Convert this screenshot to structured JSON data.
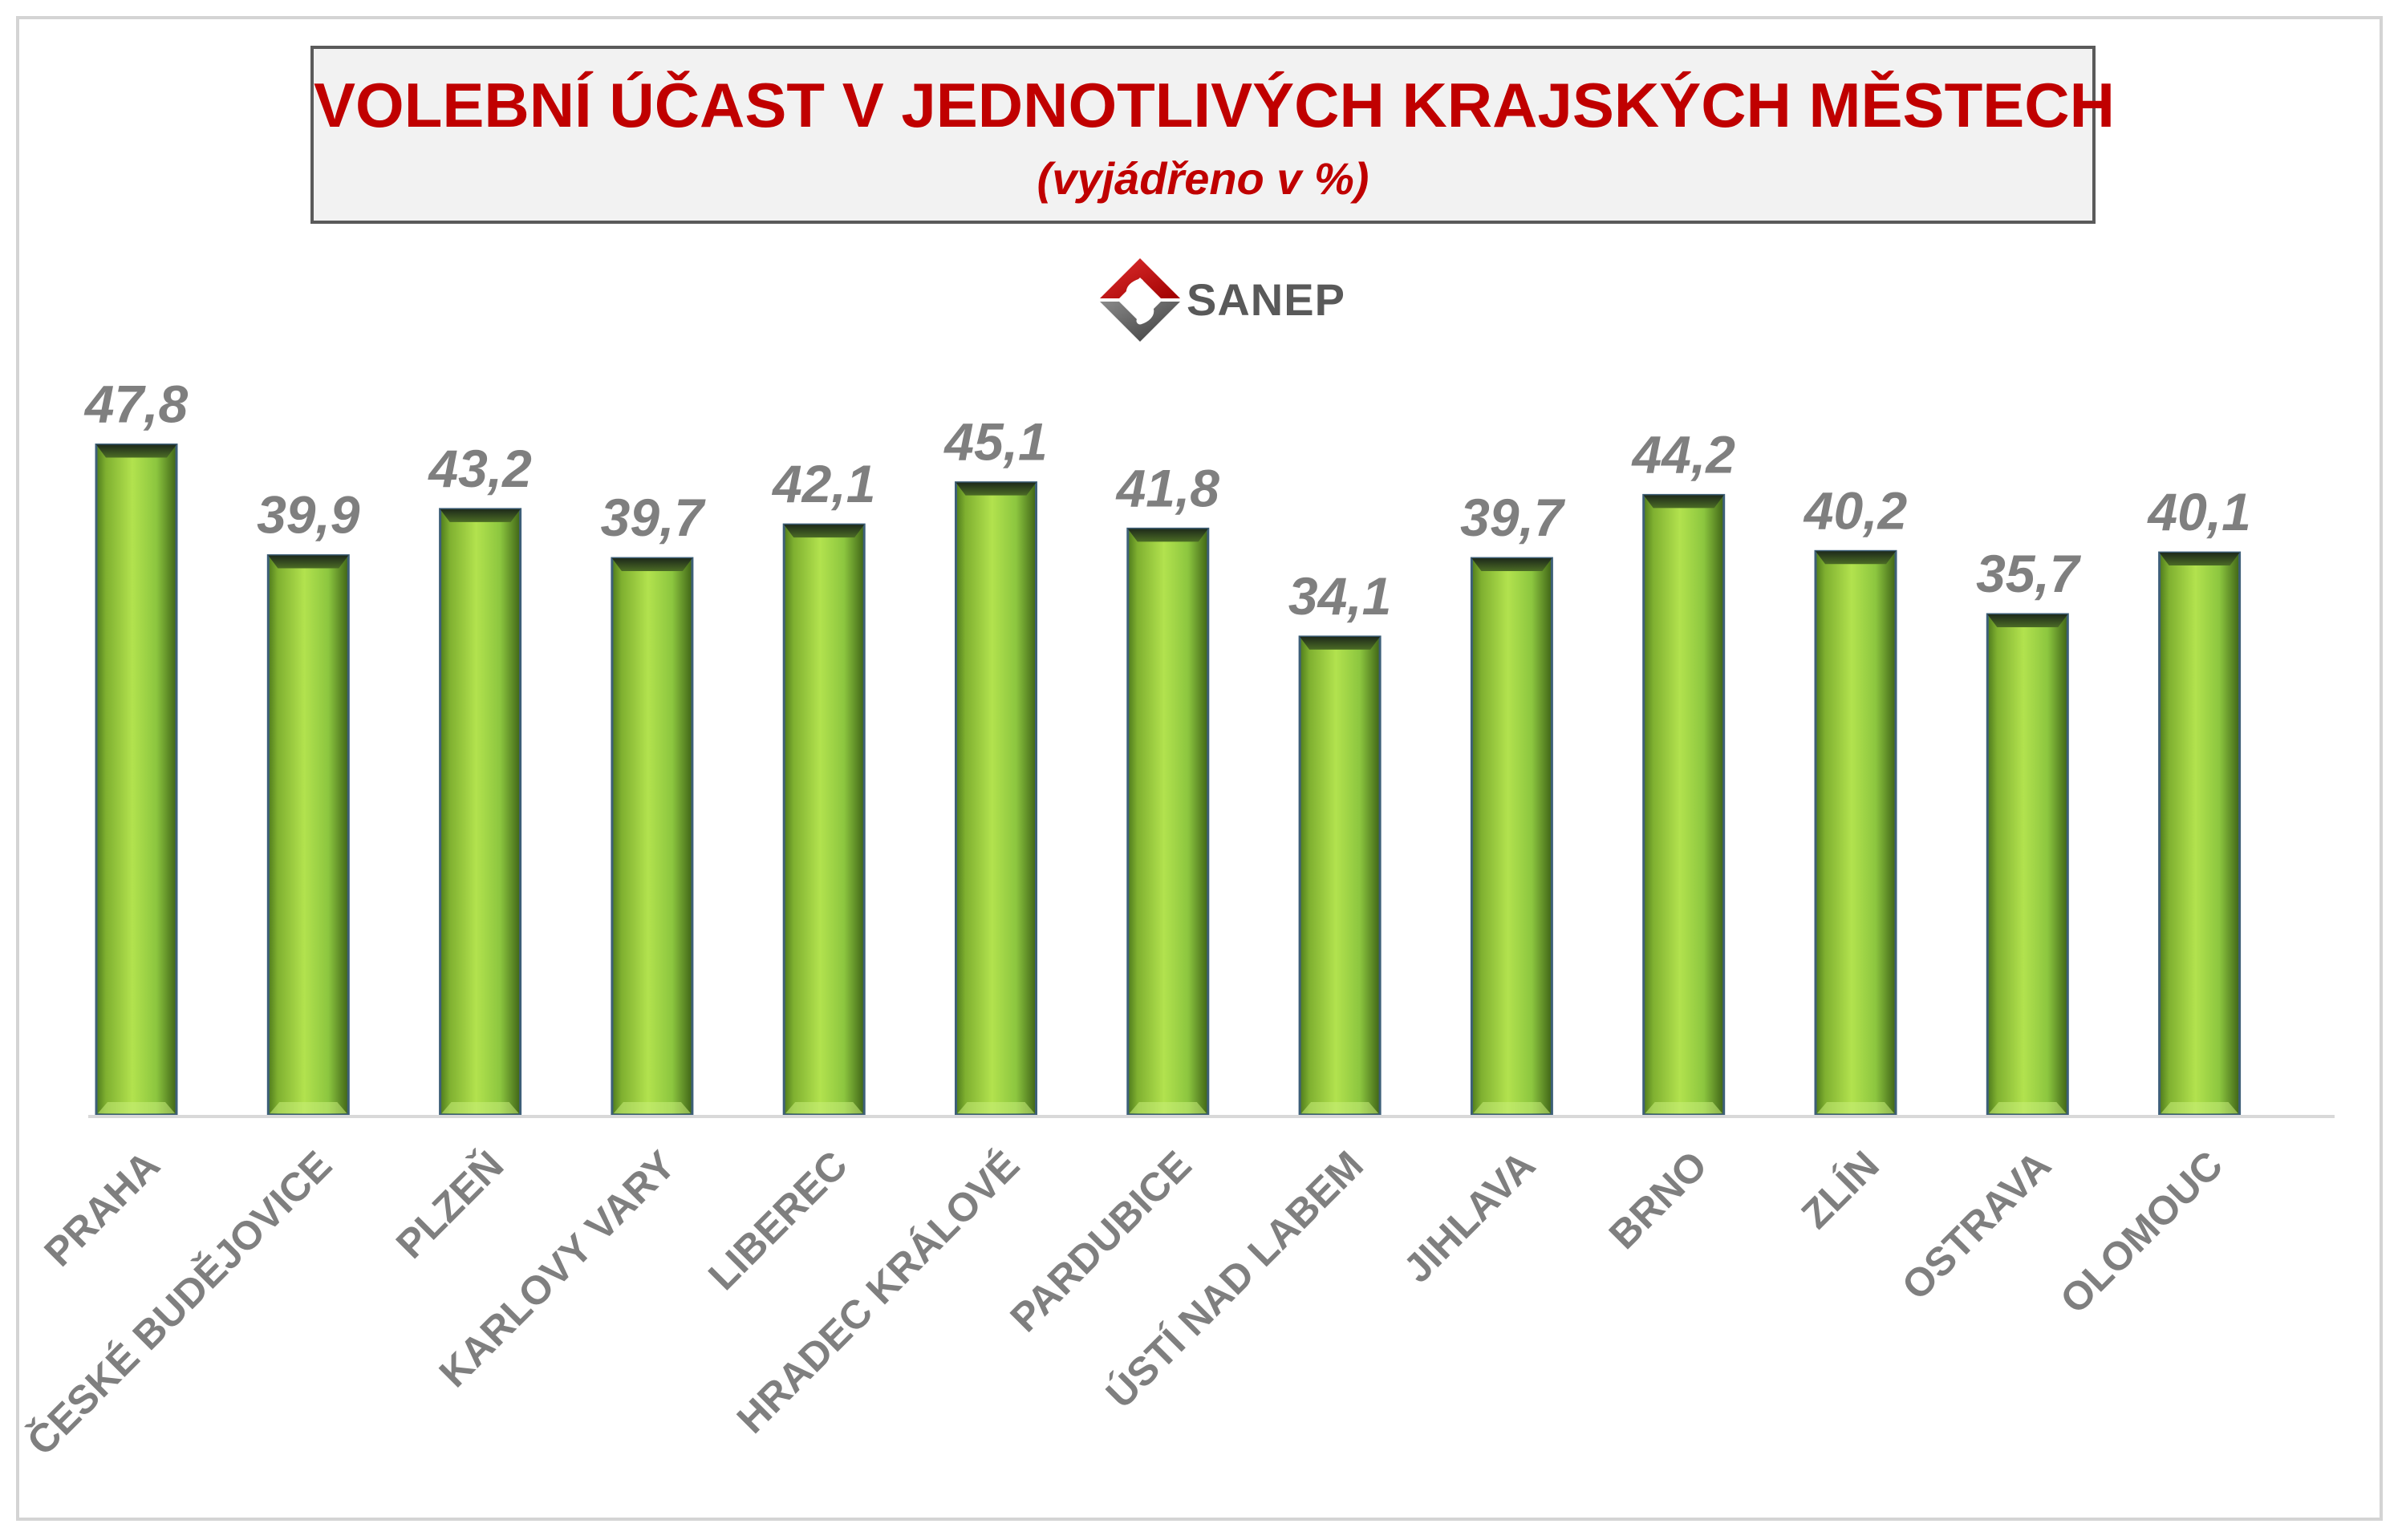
{
  "chart_data": {
    "type": "bar",
    "title": "VOLEBNÍ ÚČAST V JEDNOTLIVÝCH KRAJSKÝCH MĚSTECH",
    "subtitle": "(vyjádřeno v %)",
    "categories": [
      "PRAHA",
      "ČESKÉ BUDĚJOVICE",
      "PLZEŇ",
      "KARLOVY VARY",
      "LIBEREC",
      "HRADEC KRÁLOVÉ",
      "PARDUBICE",
      "ÚSTÍ NAD LABEM",
      "JIHLAVA",
      "BRNO",
      "ZLÍN",
      "OSTRAVA",
      "OLOMOUC"
    ],
    "values": [
      47.8,
      39.9,
      43.2,
      39.7,
      42.1,
      45.1,
      41.8,
      34.1,
      39.7,
      44.2,
      40.2,
      35.7,
      40.1
    ],
    "value_labels": [
      "47,8",
      "39,9",
      "43,2",
      "39,7",
      "42,1",
      "45,1",
      "41,8",
      "34,1",
      "39,7",
      "44,2",
      "40,2",
      "35,7",
      "40,1"
    ],
    "ylim": [
      0,
      50
    ],
    "grid": false,
    "legend": "none",
    "bar_color": "#8cc63f",
    "title_color": "#c00000",
    "label_color": "#7f7f7f"
  },
  "logo": {
    "text": "SANEP",
    "icon": "sanep-logo-icon"
  }
}
